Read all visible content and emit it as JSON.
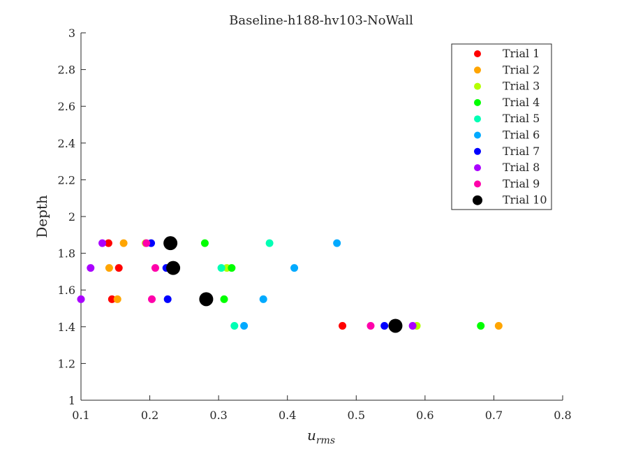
{
  "chart_data": {
    "type": "scatter",
    "title": "Baseline-h188-hv103-NoWall",
    "xlabel": "u",
    "xlabel_sub": "rms",
    "ylabel": "Depth",
    "xlim": [
      0.1,
      0.8
    ],
    "ylim": [
      1,
      3
    ],
    "xticks": [
      "0.1",
      "0.2",
      "0.3",
      "0.4",
      "0.5",
      "0.6",
      "0.7",
      "0.8"
    ],
    "yticks": [
      "1",
      "1.2",
      "1.4",
      "1.6",
      "1.8",
      "2",
      "2.2",
      "2.4",
      "2.6",
      "2.8",
      "3"
    ],
    "grid": false,
    "legend_position": "top-right",
    "series": [
      {
        "name": "Trial 1",
        "color": "#ff0000",
        "x": [
          0.14,
          0.155,
          0.145,
          0.48
        ],
        "y": [
          1.855,
          1.72,
          1.55,
          1.405
        ]
      },
      {
        "name": "Trial 2",
        "color": "#ffa500",
        "x": [
          0.162,
          0.141,
          0.153,
          0.707
        ],
        "y": [
          1.855,
          1.72,
          1.55,
          1.405
        ]
      },
      {
        "name": "Trial 3",
        "color": "#b4ff00",
        "x": [
          0.194,
          0.312,
          0.28,
          0.588
        ],
        "y": [
          1.855,
          1.72,
          1.55,
          1.405
        ]
      },
      {
        "name": "Trial 4",
        "color": "#00ff00",
        "x": [
          0.28,
          0.319,
          0.308,
          0.681
        ],
        "y": [
          1.855,
          1.72,
          1.55,
          1.405
        ]
      },
      {
        "name": "Trial 5",
        "color": "#00ffb4",
        "x": [
          0.374,
          0.304,
          0.282,
          0.323
        ],
        "y": [
          1.855,
          1.72,
          1.55,
          1.405
        ]
      },
      {
        "name": "Trial 6",
        "color": "#00aaff",
        "x": [
          0.472,
          0.41,
          0.365,
          0.337
        ],
        "y": [
          1.855,
          1.72,
          1.55,
          1.405
        ]
      },
      {
        "name": "Trial 7",
        "color": "#0000ff",
        "x": [
          0.202,
          0.224,
          0.226,
          0.541
        ],
        "y": [
          1.855,
          1.72,
          1.55,
          1.405
        ]
      },
      {
        "name": "Trial 8",
        "color": "#aa00ff",
        "x": [
          0.131,
          0.114,
          0.1,
          0.582
        ],
        "y": [
          1.855,
          1.72,
          1.55,
          1.405
        ]
      },
      {
        "name": "Trial 9",
        "color": "#ff00aa",
        "x": [
          0.195,
          0.208,
          0.203,
          0.521
        ],
        "y": [
          1.855,
          1.72,
          1.55,
          1.405
        ]
      },
      {
        "name": "Trial 10",
        "color": "#000000",
        "x": [
          0.23,
          0.234,
          0.282,
          0.557
        ],
        "y": [
          1.855,
          1.72,
          1.55,
          1.405
        ]
      }
    ]
  }
}
